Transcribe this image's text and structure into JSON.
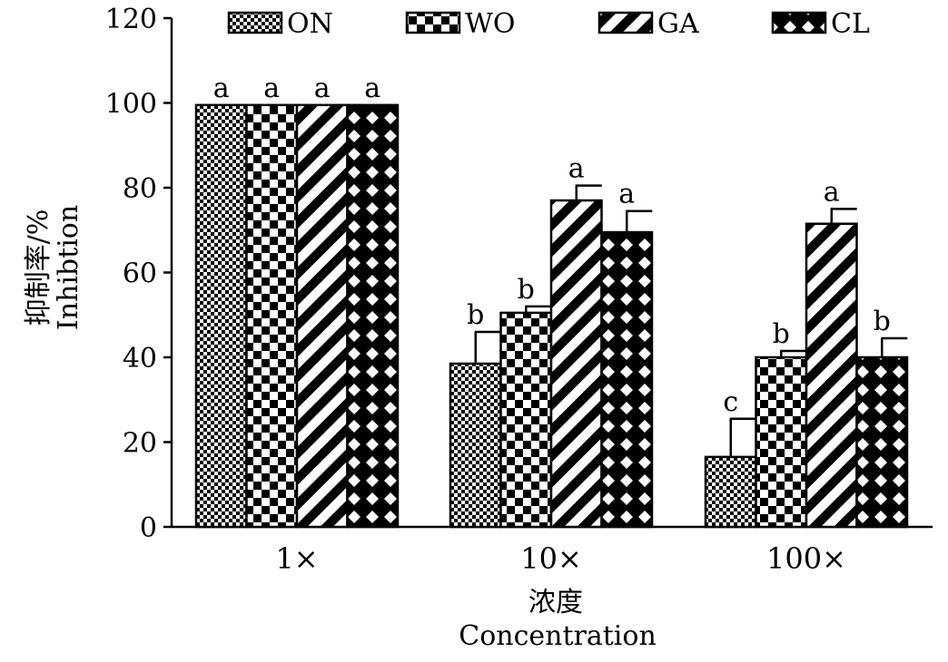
{
  "chart_data": {
    "type": "bar",
    "categories": [
      "1×",
      "10×",
      "100×"
    ],
    "series": [
      {
        "name": "ON",
        "pattern": "checker",
        "values": [
          99.5,
          38.5,
          16.5
        ],
        "errors": [
          0,
          7.5,
          9.0
        ],
        "labels": [
          "a",
          "b",
          "c"
        ]
      },
      {
        "name": "WO",
        "pattern": "large-checker",
        "values": [
          99.5,
          50.5,
          40.0
        ],
        "errors": [
          0,
          1.5,
          1.5
        ],
        "labels": [
          "a",
          "b",
          "b"
        ]
      },
      {
        "name": "GA",
        "pattern": "diagonal-stripes",
        "values": [
          99.5,
          77.0,
          71.5
        ],
        "errors": [
          0,
          3.5,
          3.5
        ],
        "labels": [
          "a",
          "a",
          "a"
        ]
      },
      {
        "name": "CL",
        "pattern": "diamond-lattice",
        "values": [
          99.5,
          69.5,
          40.0
        ],
        "errors": [
          0,
          5.0,
          4.5
        ],
        "labels": [
          "a",
          "a",
          "b"
        ]
      }
    ],
    "yticks": [
      "0",
      "20",
      "40",
      "60",
      "80",
      "100",
      "120"
    ],
    "ylim": [
      0,
      120
    ],
    "ylabel": [
      "抑制率/%",
      "Inhibtion"
    ],
    "xlabel": [
      "浓度",
      "Concentration"
    ],
    "legend_position": "top",
    "grid": false
  }
}
